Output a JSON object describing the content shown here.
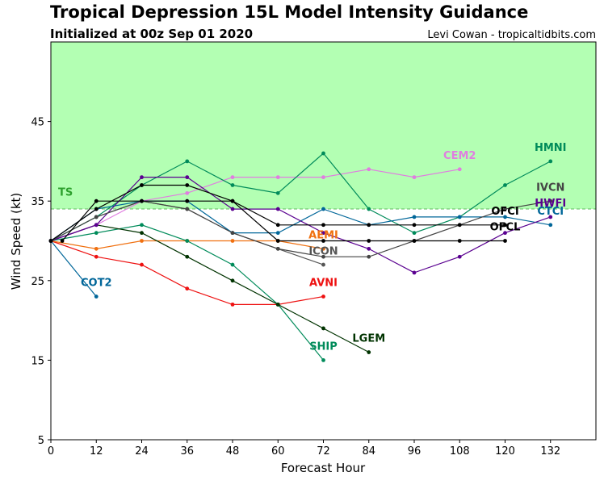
{
  "chart_data": {
    "type": "line",
    "title": "Tropical Depression 15L Model Intensity Guidance",
    "subtitle": "Initialized at 00z Sep 01 2020",
    "credit": "Levi Cowan - tropicaltidbits.com",
    "xlabel": "Forecast Hour",
    "ylabel": "Wind Speed (kt)",
    "xlim": [
      0,
      144
    ],
    "ylim": [
      5,
      55
    ],
    "xticks": [
      0,
      12,
      24,
      36,
      48,
      60,
      72,
      84,
      96,
      108,
      120,
      132
    ],
    "yticks": [
      5,
      15,
      25,
      35,
      45
    ],
    "grid": false,
    "shading": {
      "threshold": 34,
      "label": "TS",
      "fill": "#b3ffb3",
      "line_color": "#60b860",
      "label_color": "#2ca02c"
    },
    "series": [
      {
        "name": "COT2",
        "color": "#006699",
        "x": [
          0,
          12
        ],
        "y": [
          30,
          23
        ]
      },
      {
        "name": "AVNI",
        "color": "#ee1111",
        "x": [
          0,
          12,
          24,
          36,
          48,
          60,
          72
        ],
        "y": [
          30,
          28,
          27,
          24,
          22,
          22,
          23
        ]
      },
      {
        "name": "AEMI",
        "color": "#f07010",
        "x": [
          0,
          12,
          24,
          36,
          48,
          60,
          72
        ],
        "y": [
          30,
          29,
          30,
          30,
          30,
          30,
          29
        ]
      },
      {
        "name": "SHIP",
        "color": "#008b5a",
        "x": [
          0,
          12,
          24,
          36,
          48,
          60,
          72
        ],
        "y": [
          30,
          31,
          32,
          30,
          27,
          22,
          15
        ]
      },
      {
        "name": "LGEM",
        "color": "#003300",
        "x": [
          0,
          12,
          24,
          36,
          48,
          60,
          72,
          84
        ],
        "y": [
          30,
          32,
          31,
          28,
          25,
          22,
          19,
          16
        ]
      },
      {
        "name": "ICON",
        "color": "#555555",
        "x": [
          0,
          12,
          24,
          36,
          48,
          60,
          72
        ],
        "y": [
          30,
          33,
          35,
          34,
          31,
          29,
          27
        ]
      },
      {
        "name": "CEM2",
        "color": "#e07ee0",
        "x": [
          0,
          12,
          24,
          36,
          48,
          60,
          72,
          84,
          96,
          108
        ],
        "y": [
          30,
          32,
          35,
          36,
          38,
          38,
          38,
          39,
          38,
          39
        ]
      },
      {
        "name": "HMNI",
        "color": "#008b5a",
        "x": [
          0,
          12,
          24,
          36,
          48,
          60,
          72,
          84,
          96,
          108,
          120,
          132
        ],
        "y": [
          30,
          33,
          37,
          40,
          37,
          36,
          41,
          34,
          31,
          33,
          37,
          40
        ]
      },
      {
        "name": "CTCI",
        "color": "#006699",
        "x": [
          0,
          12,
          24,
          36,
          48,
          60,
          72,
          84,
          96,
          108,
          120,
          132
        ],
        "y": [
          30,
          34,
          35,
          35,
          31,
          31,
          34,
          32,
          33,
          33,
          33,
          32
        ]
      },
      {
        "name": "HWFI",
        "color": "#5a0090",
        "x": [
          0,
          12,
          24,
          36,
          48,
          60,
          72,
          84,
          96,
          108,
          120,
          132
        ],
        "y": [
          30,
          32,
          38,
          38,
          34,
          34,
          31,
          29,
          26,
          28,
          31,
          33
        ]
      },
      {
        "name": "IVCN",
        "color": "#444444",
        "x": [
          0,
          12,
          24,
          36,
          48,
          60,
          72,
          84,
          96,
          108,
          120,
          132
        ],
        "y": [
          30,
          33,
          35,
          34,
          31,
          29,
          28,
          28,
          30,
          32,
          34,
          35
        ]
      },
      {
        "name": "OFCI",
        "color": "#000000",
        "x": [
          0,
          12,
          24,
          36,
          48,
          60,
          72,
          84,
          96,
          108,
          120
        ],
        "y": [
          30,
          34,
          37,
          37,
          35,
          32,
          32,
          32,
          32,
          32,
          32
        ]
      },
      {
        "name": "OFCL",
        "color": "#000000",
        "x": [
          3,
          12,
          24,
          36,
          48,
          60,
          72,
          84,
          96,
          108,
          120
        ],
        "y": [
          30,
          35,
          35,
          35,
          35,
          30,
          30,
          30,
          30,
          30,
          30
        ]
      }
    ],
    "annotations": [
      {
        "text": "COT2",
        "color": "#006699",
        "x": 12,
        "y": 24.3,
        "anchor": "middle"
      },
      {
        "text": "AVNI",
        "color": "#ee1111",
        "x": 72,
        "y": 24.3,
        "anchor": "middle"
      },
      {
        "text": "AEMI",
        "color": "#f07010",
        "x": 72,
        "y": 30.3,
        "anchor": "middle"
      },
      {
        "text": "SHIP",
        "color": "#008b5a",
        "x": 72,
        "y": 16.3,
        "anchor": "middle"
      },
      {
        "text": "LGEM",
        "color": "#003300",
        "x": 84,
        "y": 17.3,
        "anchor": "middle"
      },
      {
        "text": "ICON",
        "color": "#555555",
        "x": 72,
        "y": 28.3,
        "anchor": "middle"
      },
      {
        "text": "CEM2",
        "color": "#e07ee0",
        "x": 108,
        "y": 40.3,
        "anchor": "middle"
      },
      {
        "text": "HMNI",
        "color": "#008b5a",
        "x": 132,
        "y": 41.3,
        "anchor": "middle"
      },
      {
        "text": "CTCI",
        "color": "#006699",
        "x": 132,
        "y": 33.3,
        "anchor": "middle"
      },
      {
        "text": "HWFI",
        "color": "#5a0090",
        "x": 132,
        "y": 34.3,
        "anchor": "middle"
      },
      {
        "text": "IVCN",
        "color": "#444444",
        "x": 132,
        "y": 36.3,
        "anchor": "middle"
      },
      {
        "text": "OFCI",
        "color": "#000000",
        "x": 120,
        "y": 33.3,
        "anchor": "middle"
      },
      {
        "text": "OFCL",
        "color": "#000000",
        "x": 120,
        "y": 31.3,
        "anchor": "middle"
      }
    ]
  }
}
